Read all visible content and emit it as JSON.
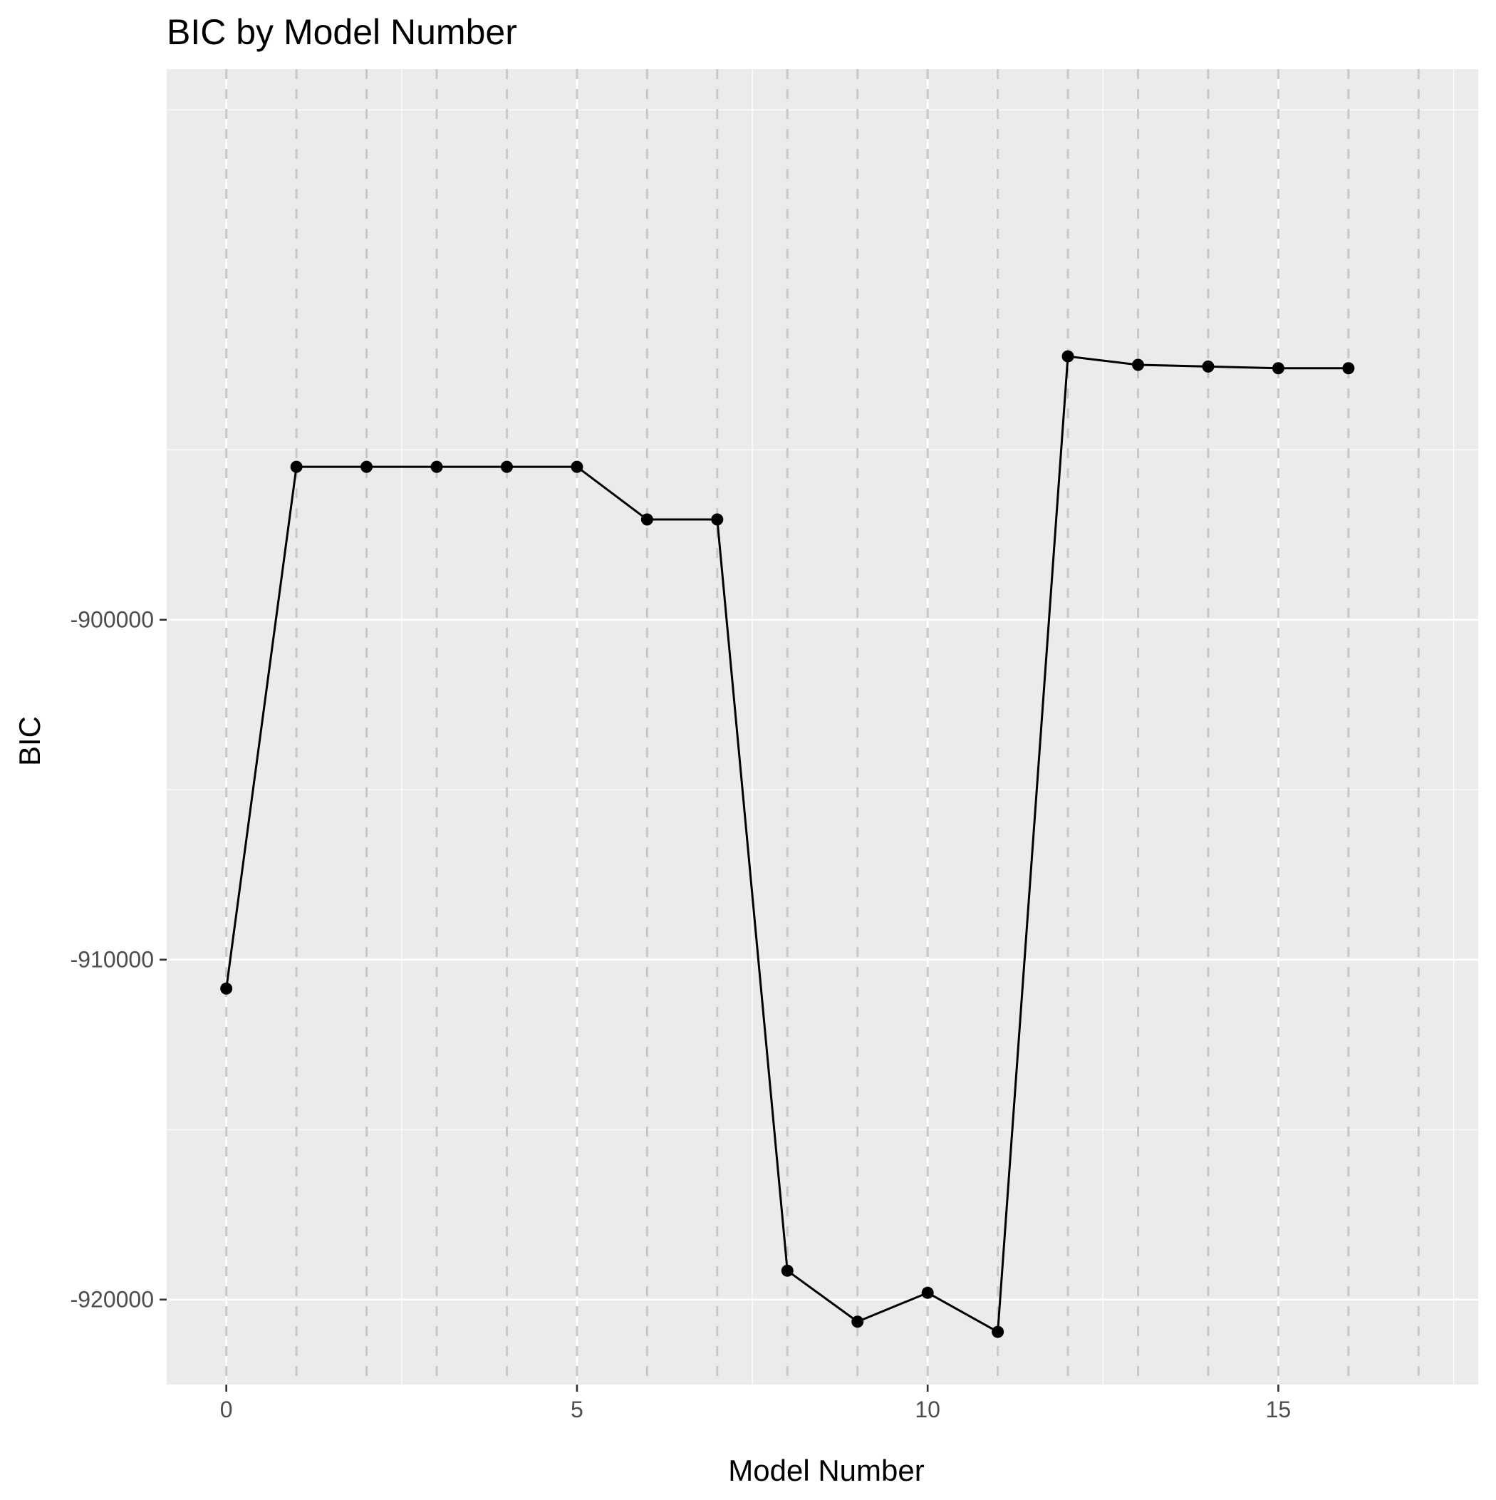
{
  "chart_data": {
    "type": "line",
    "title": "BIC by Model Number",
    "xlabel": "Model Number",
    "ylabel": "BIC",
    "xlim": [
      -0.85,
      17.85
    ],
    "ylim": [
      -922500,
      -883800
    ],
    "x_ticks": [
      0,
      5,
      10,
      15
    ],
    "x_tick_labels": [
      "0",
      "5",
      "10",
      "15"
    ],
    "y_ticks": [
      -900000,
      -910000,
      -920000
    ],
    "y_tick_labels": [
      "-900000",
      "-910000",
      "-920000"
    ],
    "dashed_vlines": [
      0,
      1,
      2,
      3,
      4,
      5,
      6,
      7,
      8,
      9,
      10,
      11,
      12,
      13,
      14,
      15,
      16,
      17
    ],
    "grid": true,
    "series": [
      {
        "x": [
          0,
          1,
          2,
          3,
          4,
          5,
          6,
          7,
          8,
          9,
          10,
          11,
          12,
          13,
          14,
          15,
          16
        ],
        "y": [
          -910850,
          -895500,
          -895500,
          -895500,
          -895500,
          -895500,
          -897050,
          -897050,
          -919150,
          -920650,
          -919800,
          -920950,
          -892250,
          -892500,
          -892550,
          -892600,
          -892600
        ]
      }
    ],
    "colors": {
      "panel": "#ebebeb",
      "grid": "#ffffff",
      "line": "#000000",
      "vline": "#c8c8c8"
    }
  }
}
